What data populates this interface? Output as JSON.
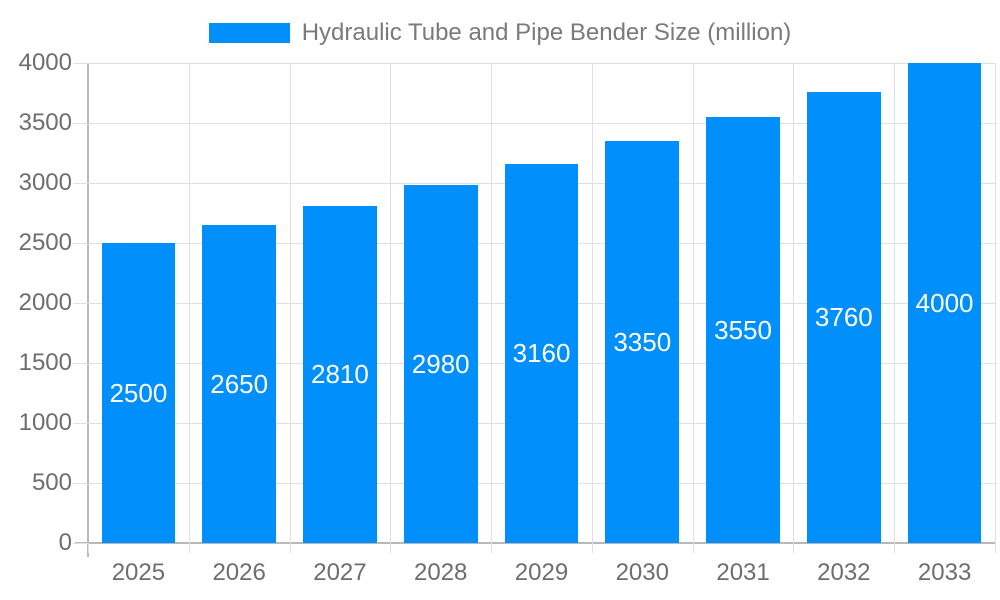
{
  "legend": {
    "label": "Hydraulic Tube and Pipe Bender Size (million)"
  },
  "chart_data": {
    "type": "bar",
    "title": "Hydraulic Tube and Pipe Bender Size (million)",
    "series_name": "Hydraulic Tube and Pipe Bender Size (million)",
    "categories": [
      "2025",
      "2026",
      "2027",
      "2028",
      "2029",
      "2030",
      "2031",
      "2032",
      "2033"
    ],
    "values": [
      2500,
      2650,
      2810,
      2980,
      3160,
      3350,
      3550,
      3760,
      4000
    ],
    "value_labels": [
      "2500",
      "2650",
      "2810",
      "2980",
      "3160",
      "3350",
      "3550",
      "3760",
      "4000"
    ],
    "xlabel": "",
    "ylabel": "",
    "ylim": [
      0,
      4000
    ],
    "ytick_step": 500,
    "yticks": [
      0,
      500,
      1000,
      1500,
      2000,
      2500,
      3000,
      3500,
      4000
    ],
    "grid": true,
    "legend_position": "top"
  },
  "colors": {
    "bar": "#008FFB",
    "grid_line": "#e0e0e0",
    "axis_line": "#b8b8b8",
    "tick_label": "#6e6e6e",
    "legend_text": "#7a7a7a",
    "value_label": "#ffffff",
    "background": "#ffffff"
  }
}
